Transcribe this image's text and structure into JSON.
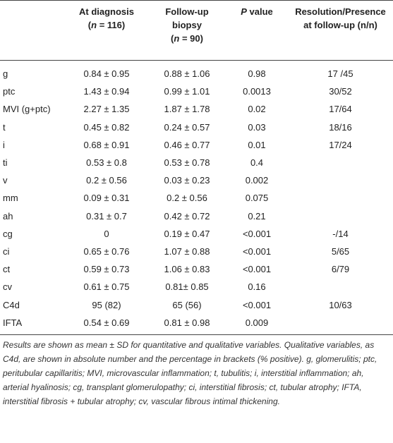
{
  "table": {
    "header": [
      null,
      [
        [
          {
            "text": "At diagnosis"
          }
        ],
        [
          {
            "text": "("
          },
          {
            "text": "n",
            "italic": true
          },
          {
            "text": " = 116)"
          }
        ]
      ],
      [
        [
          {
            "text": "Follow-up"
          }
        ],
        [
          {
            "text": "biopsy"
          }
        ],
        [
          {
            "text": "("
          },
          {
            "text": "n",
            "italic": true
          },
          {
            "text": " = 90)"
          }
        ]
      ],
      [
        [
          {
            "text": "P",
            "italic": true
          },
          {
            "text": " value"
          }
        ]
      ],
      [
        [
          {
            "text": "Resolution/Presence"
          }
        ],
        [
          {
            "text": "at follow-up (n/n)"
          }
        ]
      ]
    ],
    "rows": [
      [
        "g",
        "0.84 ± 0.95",
        "0.88 ± 1.06",
        "0.98",
        "17 /45"
      ],
      [
        "ptc",
        "1.43 ± 0.94",
        "0.99 ± 1.01",
        "0.0013",
        "30/52"
      ],
      [
        "MVI (g+ptc)",
        "2.27 ± 1.35",
        "1.87 ± 1.78",
        "0.02",
        "17/64"
      ],
      [
        "t",
        "0.45 ± 0.82",
        "0.24 ± 0.57",
        "0.03",
        "18/16"
      ],
      [
        "i",
        "0.68 ± 0.91",
        "0.46 ± 0.77",
        "0.01",
        "17/24"
      ],
      [
        "ti",
        "0.53 ± 0.8",
        "0.53 ± 0.78",
        "0.4",
        null
      ],
      [
        "v",
        "0.2 ± 0.56",
        "0.03 ± 0.23",
        "0.002",
        null
      ],
      [
        "mm",
        "0.09 ± 0.31",
        "0.2 ± 0.56",
        "0.075",
        null
      ],
      [
        "ah",
        "0.31 ± 0.7",
        "0.42 ± 0.72",
        "0.21",
        null
      ],
      [
        "cg",
        "0",
        "0.19 ± 0.47",
        "<0.001",
        "-/14"
      ],
      [
        "ci",
        "0.65 ± 0.76",
        "1.07 ± 0.88",
        "<0.001",
        "5/65"
      ],
      [
        "ct",
        "0.59 ± 0.73",
        "1.06 ± 0.83",
        "<0.001",
        "6/79"
      ],
      [
        "cv",
        "0.61 ± 0.75",
        "0.81± 0.85",
        "0.16",
        null
      ],
      [
        "C4d",
        "95 (82)",
        "65 (56)",
        "<0.001",
        "10/63"
      ],
      [
        "IFTA",
        "0.54 ± 0.69",
        "0.81 ± 0.98",
        "0.009",
        null
      ]
    ]
  },
  "footnote": "Results are shown as mean ± SD for quantitative and qualitative variables. Qualitative variables, as C4d, are shown in absolute number and the percentage in brackets (% positive). g, glomerulitis; ptc, peritubular capillaritis; MVI, microvascular inflammation; t, tubulitis; i, interstitial inflammation; ah, arterial hyalinosis; cg, transplant glomerulopathy; ci, interstitial fibrosis; ct, tubular atrophy; IFTA, interstitial fibrosis + tubular atrophy; cv, vascular fibrous intimal thickening."
}
